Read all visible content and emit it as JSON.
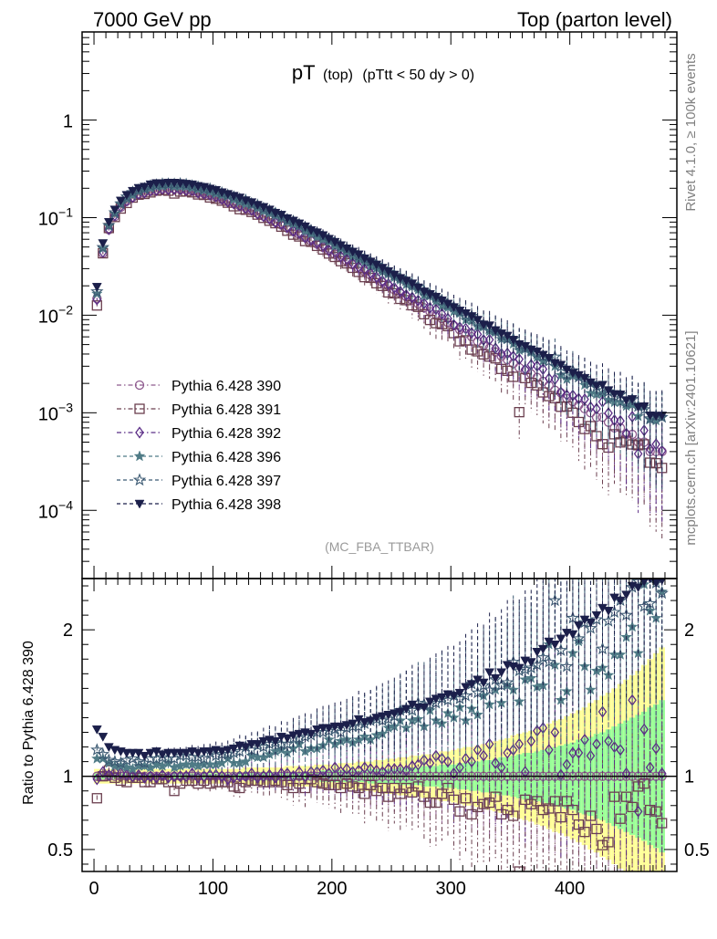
{
  "header": {
    "left": "7000 GeV pp",
    "right": "Top (parton level)"
  },
  "plot_title": {
    "main": "pT",
    "sub1": "(top)",
    "sub2": "(pTtt < 50 dy > 0)"
  },
  "side_text": {
    "rivet": "Rivet 4.1.0, ≥ 100k events",
    "mcplots": "mcplots.cern.ch [arXiv:2401.10621]"
  },
  "analysis_label": "(MC_FBA_TTBAR)",
  "ratio_ylabel": "Ratio to Pythia 6.428 390",
  "colors": {
    "s390": "#8e5a8e",
    "s391": "#6b3f4f",
    "s392": "#5b2d86",
    "s396": "#4f7b86",
    "s397": "#3c5a73",
    "s398": "#1b1f4a",
    "band_yellow": "#ffff99",
    "band_green": "#99ff99"
  },
  "legend": [
    {
      "id": "s390",
      "label": "Pythia 6.428 390",
      "marker": "circle-open",
      "dash": "dashdot"
    },
    {
      "id": "s391",
      "label": "Pythia 6.428 391",
      "marker": "square-open",
      "dash": "dashdot"
    },
    {
      "id": "s392",
      "label": "Pythia 6.428 392",
      "marker": "diamond-open",
      "dash": "dashdot"
    },
    {
      "id": "s396",
      "label": "Pythia 6.428 396",
      "marker": "star-filled",
      "dash": "dashed"
    },
    {
      "id": "s397",
      "label": "Pythia 6.428 397",
      "marker": "star-open",
      "dash": "dashed"
    },
    {
      "id": "s398",
      "label": "Pythia 6.428 398",
      "marker": "triangle-down-filled",
      "dash": "dashed"
    }
  ],
  "chart_data": {
    "type": "scatter",
    "xlim": [
      -10,
      490
    ],
    "x_ticks": [
      0,
      100,
      200,
      300,
      400
    ],
    "x_tick_labels": [
      "0",
      "100",
      "200",
      "300",
      "400"
    ],
    "main": {
      "yscale": "log",
      "ylim": [
        2e-05,
        8
      ],
      "y_ticks": [
        0.0001,
        0.001,
        0.01,
        0.1,
        1
      ],
      "y_tick_labels": [
        {
          "base": "10",
          "exp": "−4"
        },
        {
          "base": "10",
          "exp": "−3"
        },
        {
          "base": "10",
          "exp": "−2"
        },
        {
          "base": "10",
          "exp": "−1"
        },
        {
          "base": "1",
          "exp": ""
        }
      ]
    },
    "ratio": {
      "ylim": [
        0.35,
        2.35
      ],
      "y_ticks": [
        0.5,
        1,
        2
      ],
      "y_tick_labels": [
        "0.5",
        "1",
        "2"
      ]
    },
    "x": [
      2.5,
      7.5,
      12.5,
      17.5,
      22.5,
      27.5,
      32.5,
      37.5,
      42.5,
      47.5,
      52.5,
      57.5,
      62.5,
      67.5,
      72.5,
      77.5,
      82.5,
      87.5,
      92.5,
      97.5,
      102.5,
      107.5,
      112.5,
      117.5,
      122.5,
      127.5,
      132.5,
      137.5,
      142.5,
      147.5,
      152.5,
      157.5,
      162.5,
      167.5,
      172.5,
      177.5,
      182.5,
      187.5,
      192.5,
      197.5,
      202.5,
      207.5,
      212.5,
      217.5,
      222.5,
      227.5,
      232.5,
      237.5,
      242.5,
      247.5,
      252.5,
      257.5,
      262.5,
      267.5,
      272.5,
      277.5,
      282.5,
      287.5,
      292.5,
      297.5,
      302.5,
      307.5,
      312.5,
      317.5,
      322.5,
      327.5,
      332.5,
      337.5,
      342.5,
      347.5,
      352.5,
      357.5,
      362.5,
      367.5,
      372.5,
      377.5,
      382.5,
      387.5,
      392.5,
      397.5,
      402.5,
      407.5,
      412.5,
      417.5,
      422.5,
      427.5,
      432.5,
      437.5,
      442.5,
      447.5,
      452.5,
      457.5,
      462.5,
      467.5,
      472.5,
      477.5
    ],
    "reference_390": [
      0.0148,
      0.0431,
      0.0752,
      0.1025,
      0.1277,
      0.1473,
      0.1621,
      0.1736,
      0.1821,
      0.1889,
      0.1929,
      0.1955,
      0.1967,
      0.1964,
      0.1946,
      0.1915,
      0.1872,
      0.1819,
      0.1762,
      0.1695,
      0.1628,
      0.1554,
      0.1481,
      0.1406,
      0.1327,
      0.1254,
      0.1179,
      0.1107,
      0.1036,
      0.0968,
      0.0904,
      0.0842,
      0.0781,
      0.0727,
      0.0675,
      0.0625,
      0.0577,
      0.0535,
      0.0496,
      0.0456,
      0.0421,
      0.0389,
      0.0358,
      0.0329,
      0.0302,
      0.0279,
      0.0257,
      0.0236,
      0.0217,
      0.0199,
      0.0182,
      0.0167,
      0.0155,
      0.0142,
      0.0131,
      0.0119,
      0.0109,
      0.0101,
      0.0092,
      0.0084,
      0.0078,
      0.0071,
      0.0065,
      0.006,
      0.0054,
      0.0049,
      0.0046,
      0.0042,
      0.0038,
      0.0035,
      0.0032,
      0.0029,
      0.0027,
      0.0025,
      0.0023,
      0.0021,
      0.0019,
      0.0017,
      0.0016,
      0.0014,
      0.0013,
      0.0012,
      0.0011,
      0.001,
      0.0009,
      0.0009,
      0.0008,
      0.0007,
      0.0007,
      0.0006,
      0.0006,
      0.0005,
      0.0005,
      0.0004,
      0.0004,
      0.0004
    ],
    "band_yellow_halfwidth": [
      0.05,
      0.05,
      0.05,
      0.05,
      0.05,
      0.05,
      0.05,
      0.05,
      0.05,
      0.05,
      0.05,
      0.05,
      0.05,
      0.05,
      0.05,
      0.05,
      0.05,
      0.05,
      0.05,
      0.05,
      0.05,
      0.05,
      0.05,
      0.05,
      0.05,
      0.06,
      0.06,
      0.06,
      0.06,
      0.06,
      0.06,
      0.06,
      0.07,
      0.07,
      0.07,
      0.07,
      0.07,
      0.08,
      0.08,
      0.08,
      0.08,
      0.09,
      0.09,
      0.09,
      0.1,
      0.1,
      0.1,
      0.11,
      0.11,
      0.12,
      0.12,
      0.13,
      0.13,
      0.14,
      0.14,
      0.15,
      0.15,
      0.16,
      0.17,
      0.17,
      0.18,
      0.19,
      0.2,
      0.2,
      0.21,
      0.22,
      0.23,
      0.24,
      0.25,
      0.26,
      0.28,
      0.29,
      0.3,
      0.31,
      0.33,
      0.34,
      0.36,
      0.38,
      0.39,
      0.41,
      0.43,
      0.45,
      0.47,
      0.5,
      0.52,
      0.55,
      0.57,
      0.6,
      0.63,
      0.66,
      0.69,
      0.72,
      0.76,
      0.8,
      0.84,
      0.88
    ],
    "band_green_halfwidth": [
      0.02,
      0.02,
      0.02,
      0.02,
      0.02,
      0.02,
      0.02,
      0.02,
      0.02,
      0.02,
      0.02,
      0.02,
      0.02,
      0.02,
      0.02,
      0.02,
      0.02,
      0.02,
      0.02,
      0.02,
      0.02,
      0.02,
      0.02,
      0.02,
      0.02,
      0.02,
      0.03,
      0.03,
      0.03,
      0.03,
      0.03,
      0.03,
      0.03,
      0.03,
      0.03,
      0.03,
      0.03,
      0.03,
      0.04,
      0.04,
      0.04,
      0.04,
      0.04,
      0.04,
      0.04,
      0.04,
      0.05,
      0.05,
      0.05,
      0.05,
      0.05,
      0.06,
      0.06,
      0.06,
      0.06,
      0.07,
      0.07,
      0.07,
      0.08,
      0.08,
      0.08,
      0.09,
      0.09,
      0.1,
      0.1,
      0.11,
      0.11,
      0.12,
      0.13,
      0.13,
      0.14,
      0.15,
      0.16,
      0.16,
      0.17,
      0.18,
      0.19,
      0.2,
      0.21,
      0.22,
      0.23,
      0.25,
      0.26,
      0.27,
      0.29,
      0.3,
      0.32,
      0.34,
      0.36,
      0.38,
      0.4,
      0.42,
      0.44,
      0.47,
      0.49,
      0.52
    ],
    "series": [
      {
        "id": "s390",
        "name": "Pythia 6.428 390",
        "ratio": [
          1.0,
          1.0,
          1.0,
          1.0,
          1.0,
          1.0,
          1.0,
          1.0,
          1.0,
          1.0,
          1.0,
          1.0,
          1.0,
          1.0,
          1.0,
          1.0,
          1.0,
          1.0,
          1.0,
          1.0,
          1.0,
          1.0,
          1.0,
          1.0,
          1.0,
          1.0,
          1.0,
          1.0,
          1.0,
          1.0,
          1.0,
          1.0,
          1.0,
          1.0,
          1.0,
          1.0,
          1.0,
          1.0,
          1.0,
          1.0,
          1.0,
          1.0,
          1.0,
          1.0,
          1.0,
          1.0,
          1.0,
          1.0,
          1.0,
          1.0,
          1.0,
          1.0,
          1.0,
          1.0,
          1.0,
          1.0,
          1.0,
          1.0,
          1.0,
          1.0,
          1.0,
          1.0,
          1.0,
          1.0,
          1.0,
          1.0,
          1.0,
          1.0,
          1.0,
          1.0,
          1.0,
          1.0,
          1.0,
          1.0,
          1.0,
          1.0,
          1.0,
          1.0,
          1.0,
          1.0,
          1.0,
          1.0,
          1.0,
          1.0,
          1.0,
          1.0,
          1.0,
          1.0,
          1.0,
          1.0,
          1.0,
          1.0,
          1.0,
          1.0,
          1.0,
          1.0
        ]
      },
      {
        "id": "s391",
        "name": "Pythia 6.428 391",
        "ratio": [
          0.85,
          1.0,
          1.04,
          0.99,
          0.97,
          0.96,
          0.99,
          0.99,
          0.96,
          0.96,
          0.98,
          0.98,
          0.96,
          0.9,
          0.95,
          0.97,
          0.97,
          0.95,
          0.97,
          0.95,
          0.96,
          0.96,
          0.96,
          0.93,
          0.92,
          0.96,
          0.97,
          0.97,
          0.96,
          0.96,
          0.97,
          0.96,
          0.94,
          0.92,
          0.95,
          0.92,
          0.98,
          0.96,
          0.95,
          0.94,
          0.94,
          0.92,
          0.95,
          0.93,
          0.92,
          0.88,
          0.94,
          0.9,
          0.92,
          0.86,
          0.92,
          0.88,
          0.92,
          0.89,
          0.93,
          0.86,
          0.82,
          0.82,
          0.88,
          0.92,
          0.84,
          0.76,
          0.85,
          0.74,
          0.79,
          0.81,
          0.82,
          0.86,
          0.74,
          0.77,
          0.73,
          0.35,
          0.84,
          0.81,
          0.83,
          0.77,
          0.78,
          0.83,
          0.72,
          0.83,
          0.77,
          0.67,
          0.62,
          0.73,
          0.64,
          0.53,
          0.55,
          0.86,
          0.71,
          0.86,
          0.79,
          0.93,
          0.95,
          0.77,
          0.76,
          0.68
        ]
      },
      {
        "id": "s392",
        "name": "Pythia 6.428 392",
        "ratio": [
          0.98,
          1.03,
          1.01,
          1.03,
          1.02,
          1.01,
          1.0,
          1.01,
          0.99,
          1.0,
          0.99,
          1.01,
          0.99,
          1.0,
          1.0,
          1.0,
          1.02,
          0.99,
          1.0,
          1.01,
          1.01,
          1.0,
          0.98,
          0.99,
          1.0,
          1.0,
          1.02,
          0.99,
          1.0,
          1.01,
          0.99,
          1.02,
          1.02,
          1.0,
          1.03,
          1.0,
          1.03,
          1.03,
          1.04,
          1.02,
          1.06,
          1.03,
          1.05,
          1.03,
          1.04,
          1.06,
          1.05,
          1.04,
          1.03,
          1.05,
          1.05,
          1.05,
          1.04,
          1.07,
          1.08,
          1.11,
          1.09,
          1.14,
          1.12,
          1.1,
          1.02,
          1.06,
          1.12,
          1.1,
          1.18,
          1.14,
          1.22,
          1.09,
          1.06,
          1.16,
          1.18,
          1.22,
          1.03,
          1.24,
          1.31,
          1.33,
          1.18,
          1.3,
          1.01,
          1.08,
          1.16,
          1.16,
          1.25,
          1.14,
          1.22,
          1.44,
          1.24,
          1.2,
          1.18,
          1.02,
          1.52,
          0.76,
          1.32,
          1.06,
          1.19,
          1.02
        ]
      },
      {
        "id": "s396",
        "name": "Pythia 6.428 396",
        "ratio": [
          1.12,
          1.12,
          1.09,
          1.07,
          1.07,
          1.06,
          1.05,
          1.07,
          1.07,
          1.06,
          1.08,
          1.07,
          1.09,
          1.06,
          1.07,
          1.08,
          1.08,
          1.07,
          1.08,
          1.08,
          1.08,
          1.09,
          1.12,
          1.09,
          1.09,
          1.1,
          1.14,
          1.13,
          1.13,
          1.15,
          1.17,
          1.18,
          1.16,
          1.19,
          1.22,
          1.17,
          1.19,
          1.19,
          1.21,
          1.25,
          1.22,
          1.24,
          1.25,
          1.23,
          1.25,
          1.27,
          1.25,
          1.28,
          1.29,
          1.33,
          1.34,
          1.38,
          1.33,
          1.38,
          1.39,
          1.34,
          1.45,
          1.38,
          1.36,
          1.43,
          1.4,
          1.47,
          1.38,
          1.46,
          1.42,
          1.55,
          1.49,
          1.59,
          1.5,
          1.62,
          1.59,
          1.51,
          1.66,
          1.67,
          1.61,
          1.62,
          1.9,
          1.76,
          1.52,
          1.58,
          1.84,
          1.92,
          1.75,
          1.59,
          1.72,
          1.74,
          1.69,
          1.83,
          1.83,
          1.95,
          2.02,
          1.84,
          2.31,
          2.13,
          2.08,
          2.26
        ]
      },
      {
        "id": "s397",
        "name": "Pythia 6.428 397",
        "ratio": [
          1.18,
          1.15,
          1.11,
          1.1,
          1.09,
          1.11,
          1.12,
          1.1,
          1.09,
          1.12,
          1.12,
          1.13,
          1.12,
          1.12,
          1.14,
          1.14,
          1.13,
          1.13,
          1.12,
          1.16,
          1.14,
          1.15,
          1.15,
          1.16,
          1.17,
          1.2,
          1.18,
          1.21,
          1.2,
          1.22,
          1.23,
          1.22,
          1.22,
          1.26,
          1.26,
          1.27,
          1.28,
          1.3,
          1.3,
          1.31,
          1.32,
          1.3,
          1.33,
          1.34,
          1.34,
          1.36,
          1.38,
          1.39,
          1.38,
          1.39,
          1.41,
          1.45,
          1.46,
          1.45,
          1.5,
          1.49,
          1.49,
          1.5,
          1.53,
          1.52,
          1.55,
          1.53,
          1.55,
          1.63,
          1.57,
          1.62,
          1.59,
          1.66,
          1.62,
          1.64,
          1.78,
          1.72,
          1.73,
          1.74,
          1.76,
          1.81,
          1.78,
          2.2,
          1.86,
          1.75,
          2.08,
          1.94,
          2.05,
          2.01,
          2.07,
          1.87,
          2.06,
          2.12,
          2.2,
          2.1,
          2.29,
          2.33,
          2.16,
          2.18,
          2.32,
          2.25
        ]
      },
      {
        "id": "s398",
        "name": "Pythia 6.428 398",
        "ratio": [
          1.32,
          1.27,
          1.2,
          1.18,
          1.17,
          1.16,
          1.16,
          1.16,
          1.14,
          1.16,
          1.17,
          1.15,
          1.16,
          1.16,
          1.16,
          1.16,
          1.17,
          1.16,
          1.17,
          1.17,
          1.18,
          1.17,
          1.18,
          1.19,
          1.21,
          1.2,
          1.22,
          1.22,
          1.24,
          1.25,
          1.24,
          1.27,
          1.26,
          1.28,
          1.29,
          1.3,
          1.29,
          1.32,
          1.33,
          1.33,
          1.34,
          1.34,
          1.35,
          1.36,
          1.39,
          1.37,
          1.38,
          1.4,
          1.41,
          1.42,
          1.43,
          1.44,
          1.46,
          1.49,
          1.47,
          1.47,
          1.51,
          1.53,
          1.54,
          1.56,
          1.55,
          1.57,
          1.61,
          1.63,
          1.66,
          1.64,
          1.71,
          1.67,
          1.71,
          1.76,
          1.75,
          1.74,
          1.79,
          1.78,
          1.85,
          1.87,
          1.92,
          1.9,
          1.94,
          1.98,
          1.97,
          2.03,
          2.07,
          2.05,
          2.1,
          2.15,
          2.13,
          2.22,
          2.2,
          2.24,
          2.3,
          2.29,
          2.33,
          2.35,
          2.32,
          2.34
        ]
      }
    ]
  }
}
